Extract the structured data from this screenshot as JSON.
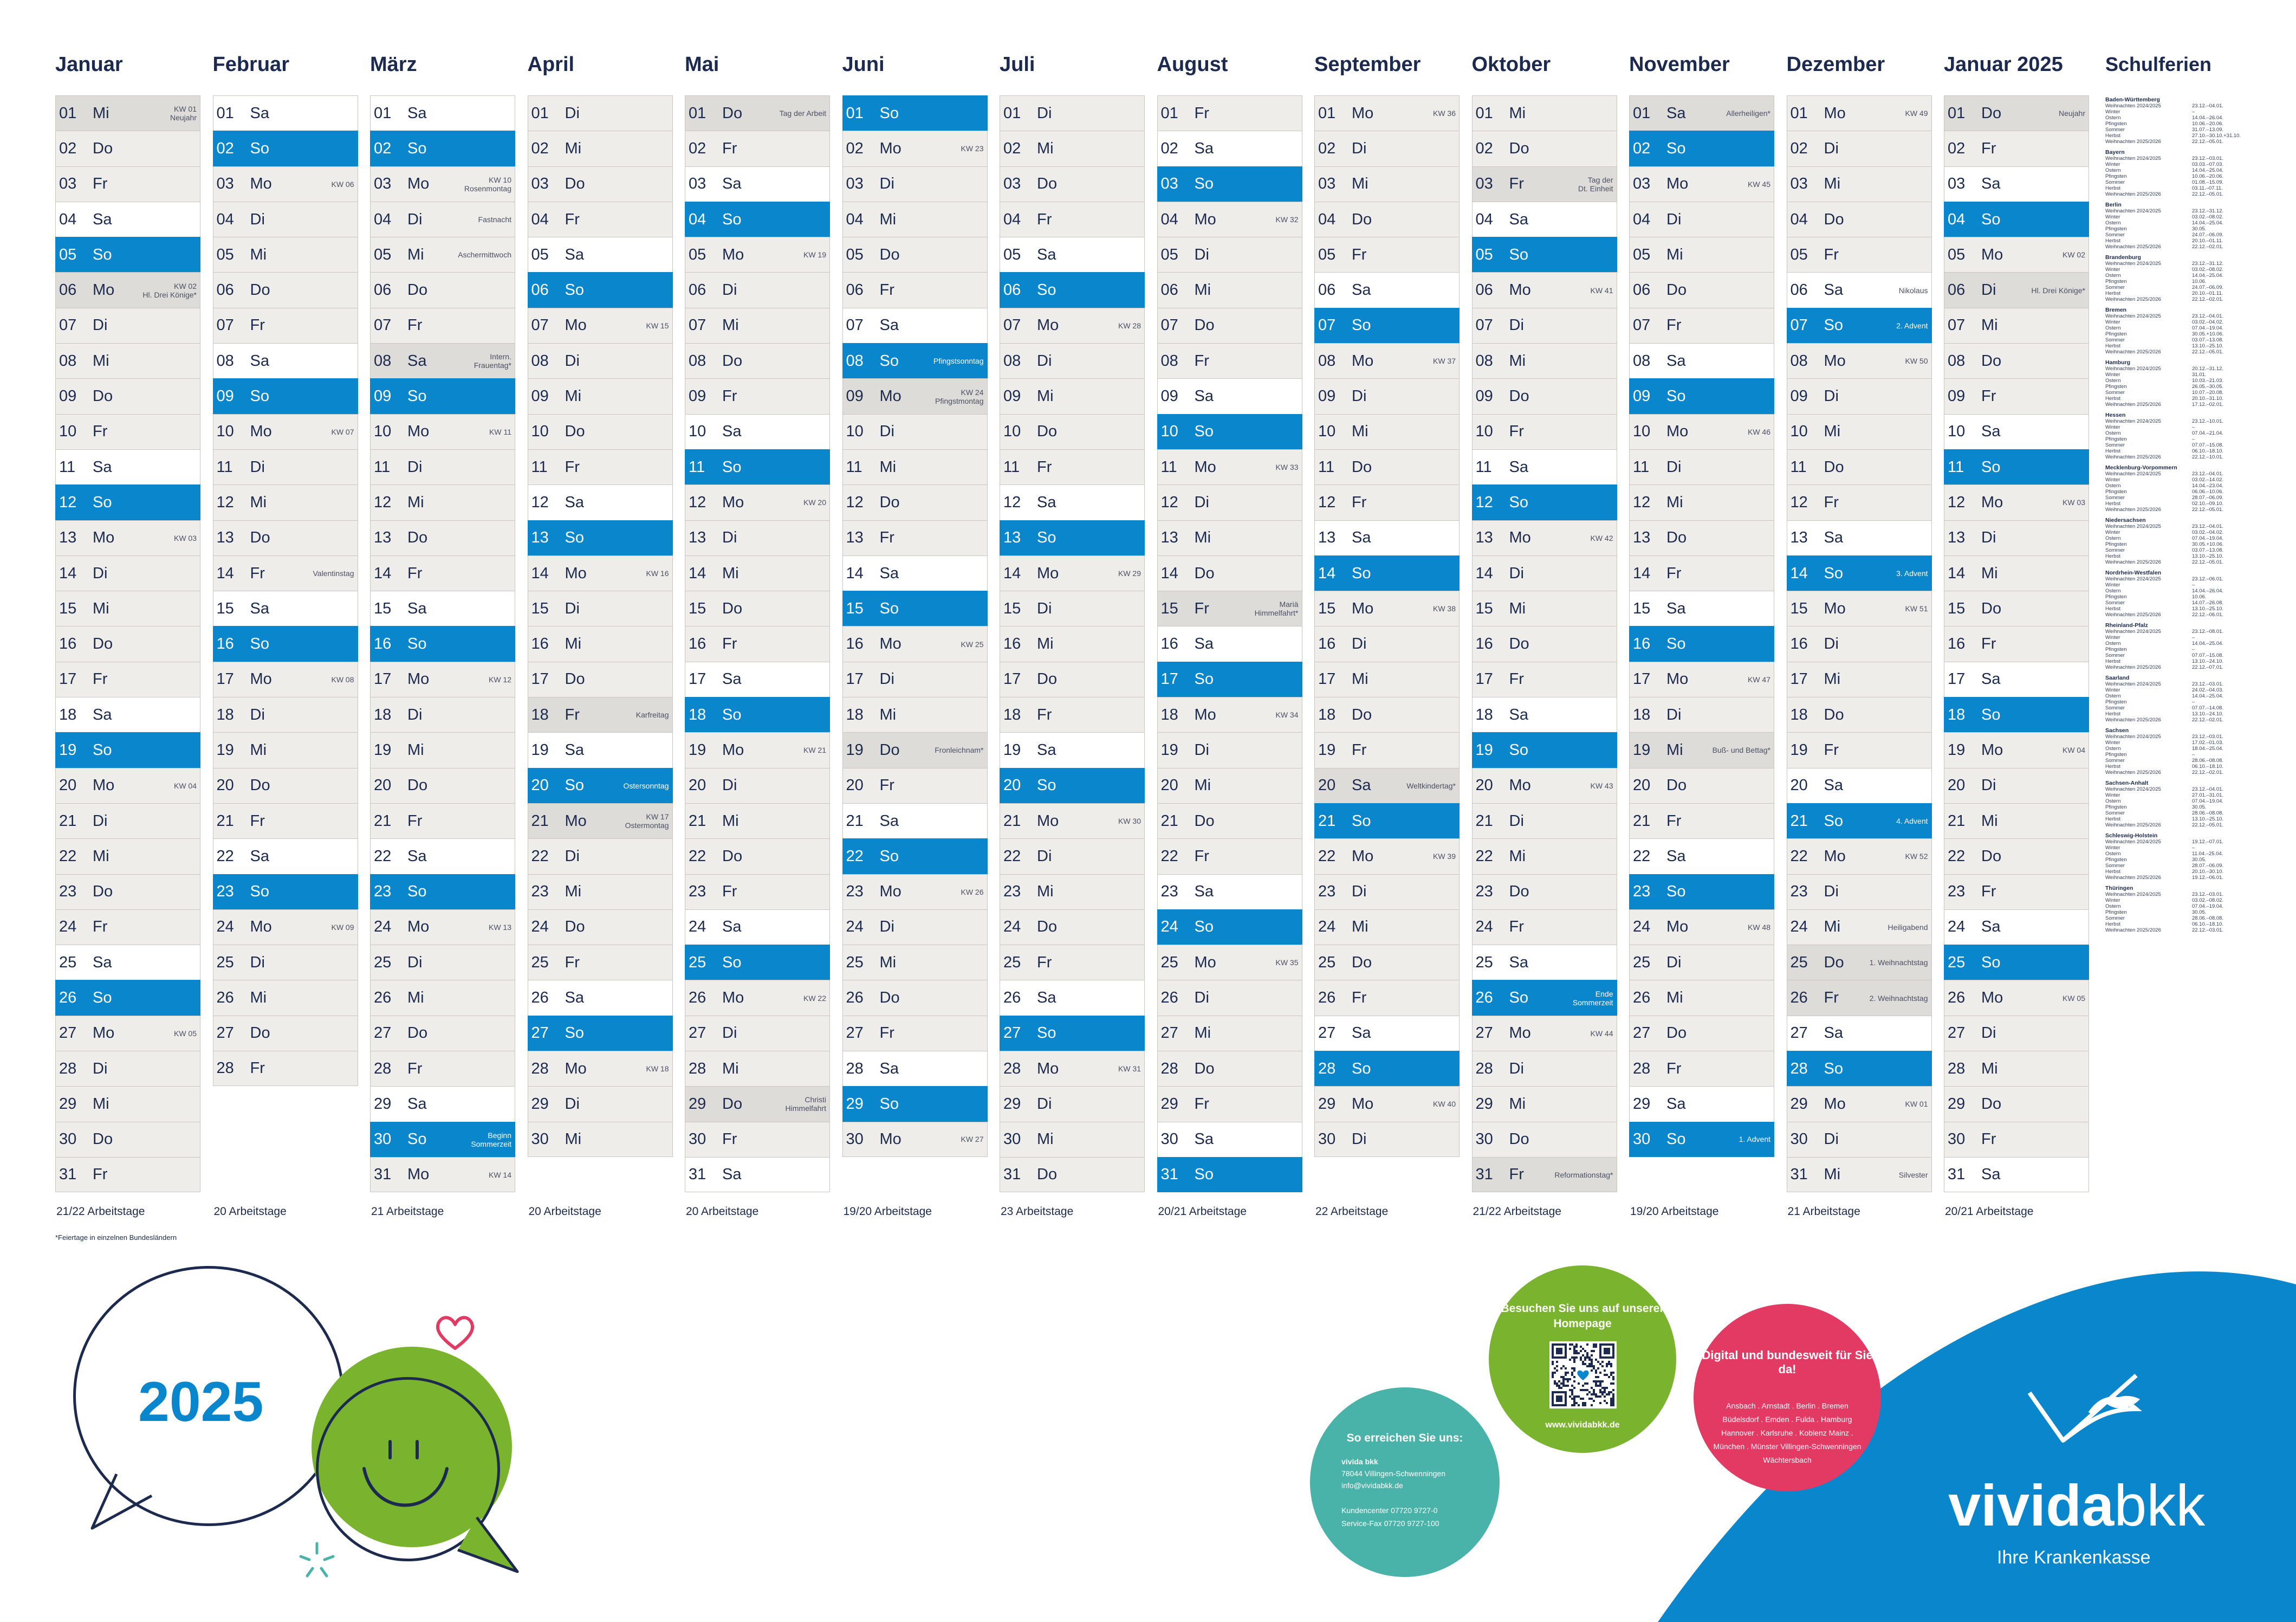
{
  "months": [
    {
      "name": "Januar",
      "workdays": "21/22 Arbeitstage",
      "first_weekday": 2,
      "length": 31,
      "notes": {
        "1": "KW 01\nNeujahr",
        "6": "KW 02\nHl. Drei Könige*",
        "13": "KW 03",
        "20": "KW 04",
        "27": "KW 05"
      },
      "holidays": [
        1,
        6
      ]
    },
    {
      "name": "Februar",
      "workdays": "20 Arbeitstage",
      "first_weekday": 5,
      "length": 28,
      "notes": {
        "3": "KW 06",
        "10": "KW 07",
        "14": "Valentinstag",
        "17": "KW 08",
        "24": "KW 09"
      },
      "holidays": []
    },
    {
      "name": "März",
      "workdays": "21 Arbeitstage",
      "first_weekday": 5,
      "length": 31,
      "notes": {
        "3": "KW 10\nRosenmontag",
        "4": "Fastnacht",
        "5": "Aschermittwoch",
        "8": "Intern.\nFrauentag*",
        "10": "KW 11",
        "17": "KW 12",
        "24": "KW 13",
        "30": "Beginn\nSommerzeit",
        "31": "KW 14"
      },
      "holidays": [
        8
      ]
    },
    {
      "name": "April",
      "workdays": "20 Arbeitstage",
      "first_weekday": 1,
      "length": 30,
      "notes": {
        "7": "KW 15",
        "14": "KW 16",
        "18": "Karfreitag",
        "20": "Ostersonntag",
        "21": "KW 17\nOstermontag",
        "28": "KW 18"
      },
      "holidays": [
        18,
        21
      ]
    },
    {
      "name": "Mai",
      "workdays": "20 Arbeitstage",
      "first_weekday": 3,
      "length": 31,
      "notes": {
        "1": "Tag der Arbeit",
        "5": "KW 19",
        "12": "KW 20",
        "19": "KW 21",
        "26": "KW 22",
        "29": "Christi\nHimmelfahrt"
      },
      "holidays": [
        1,
        29
      ]
    },
    {
      "name": "Juni",
      "workdays": "19/20 Arbeitstage",
      "first_weekday": 6,
      "length": 30,
      "notes": {
        "2": "KW 23",
        "8": "Pfingstsonntag",
        "9": "KW 24\nPfingstmontag",
        "16": "KW 25",
        "19": "Fronleichnam*",
        "23": "KW 26",
        "30": "KW 27"
      },
      "holidays": [
        9,
        19
      ]
    },
    {
      "name": "Juli",
      "workdays": "23 Arbeitstage",
      "first_weekday": 1,
      "length": 31,
      "notes": {
        "7": "KW 28",
        "14": "KW 29",
        "21": "KW 30",
        "28": "KW 31"
      },
      "holidays": []
    },
    {
      "name": "August",
      "workdays": "20/21 Arbeitstage",
      "first_weekday": 4,
      "length": 31,
      "notes": {
        "4": "KW 32",
        "11": "KW 33",
        "15": "Mariä\nHimmelfahrt*",
        "18": "KW 34",
        "25": "KW 35"
      },
      "holidays": [
        15
      ]
    },
    {
      "name": "September",
      "workdays": "22 Arbeitstage",
      "first_weekday": 0,
      "length": 30,
      "notes": {
        "1": "KW 36",
        "8": "KW 37",
        "15": "KW 38",
        "20": "Weltkindertag*",
        "22": "KW 39",
        "29": "KW 40"
      },
      "holidays": [
        20
      ]
    },
    {
      "name": "Oktober",
      "workdays": "21/22 Arbeitstage",
      "first_weekday": 2,
      "length": 31,
      "notes": {
        "3": "Tag der\nDt. Einheit",
        "6": "KW 41",
        "13": "KW 42",
        "20": "KW 43",
        "26": "Ende\nSommerzeit",
        "27": "KW 44",
        "31": "Reformationstag*"
      },
      "holidays": [
        3,
        31
      ]
    },
    {
      "name": "November",
      "workdays": "19/20 Arbeitstage",
      "first_weekday": 5,
      "length": 30,
      "notes": {
        "1": "Allerheiligen*",
        "3": "KW 45",
        "10": "KW 46",
        "17": "KW 47",
        "19": "Buß- und Bettag*",
        "24": "KW 48",
        "30": "1. Advent"
      },
      "holidays": [
        1,
        19
      ]
    },
    {
      "name": "Dezember",
      "workdays": "21 Arbeitstage",
      "first_weekday": 0,
      "length": 31,
      "notes": {
        "1": "KW 49",
        "6": "Nikolaus",
        "7": "2. Advent",
        "8": "KW 50",
        "14": "3. Advent",
        "15": "KW 51",
        "21": "4. Advent",
        "22": "KW 52",
        "24": "Heiligabend",
        "25": "1. Weihnachtstag",
        "26": "2. Weihnachtstag",
        "29": "KW 01",
        "31": "Silvester"
      },
      "holidays": [
        25,
        26
      ]
    },
    {
      "name": "Januar 2025",
      "workdays": "20/21 Arbeitstage",
      "first_weekday": 3,
      "length": 31,
      "notes": {
        "1": "Neujahr",
        "5": "KW 02",
        "6": "Hl. Drei Könige*",
        "12": "KW 03",
        "19": "KW 04",
        "26": "KW 05"
      },
      "holidays": [
        1,
        6
      ]
    }
  ],
  "weekday_abbr": [
    "Mo",
    "Di",
    "Mi",
    "Do",
    "Fr",
    "Sa",
    "So"
  ],
  "footnote": "*Feiertage in einzelnen Bundesländern",
  "schulferien": {
    "title": "Schulferien",
    "states": [
      {
        "name": "Baden-Württemberg",
        "rows": [
          [
            "Weihnachten 2024/2025",
            "23.12.–04.01."
          ],
          [
            "Winter",
            "–"
          ],
          [
            "Ostern",
            "14.04.–26.04."
          ],
          [
            "Pfingsten",
            "10.06.–20.06."
          ],
          [
            "Sommer",
            "31.07.–13.09."
          ],
          [
            "Herbst",
            "27.10.–30.10.+31.10."
          ],
          [
            "Weihnachten 2025/2026",
            "22.12.–05.01."
          ]
        ]
      },
      {
        "name": "Bayern",
        "rows": [
          [
            "Weihnachten 2024/2025",
            "23.12.–03.01."
          ],
          [
            "Winter",
            "03.03.–07.03."
          ],
          [
            "Ostern",
            "14.04.–25.04."
          ],
          [
            "Pfingsten",
            "10.06.–20.06."
          ],
          [
            "Sommer",
            "01.08.–15.09."
          ],
          [
            "Herbst",
            "03.11.–07.11."
          ],
          [
            "Weihnachten 2025/2026",
            "22.12.–05.01."
          ]
        ]
      },
      {
        "name": "Berlin",
        "rows": [
          [
            "Weihnachten 2024/2025",
            "23.12.–31.12."
          ],
          [
            "Winter",
            "03.02.–08.02."
          ],
          [
            "Ostern",
            "14.04.–25.04."
          ],
          [
            "Pfingsten",
            "30.05."
          ],
          [
            "Sommer",
            "24.07.–06.09."
          ],
          [
            "Herbst",
            "20.10.–01.11."
          ],
          [
            "Weihnachten 2025/2026",
            "22.12.–02.01."
          ]
        ]
      },
      {
        "name": "Brandenburg",
        "rows": [
          [
            "Weihnachten 2024/2025",
            "23.12.–31.12."
          ],
          [
            "Winter",
            "03.02.–08.02."
          ],
          [
            "Ostern",
            "14.04.–25.04."
          ],
          [
            "Pfingsten",
            "10.06."
          ],
          [
            "Sommer",
            "24.07.–06.09."
          ],
          [
            "Herbst",
            "20.10.–01.11."
          ],
          [
            "Weihnachten 2025/2026",
            "22.12.–02.01."
          ]
        ]
      },
      {
        "name": "Bremen",
        "rows": [
          [
            "Weihnachten 2024/2025",
            "23.12.–04.01."
          ],
          [
            "Winter",
            "03.02.–04.02."
          ],
          [
            "Ostern",
            "07.04.–19.04."
          ],
          [
            "Pfingsten",
            "30.05.+10.06."
          ],
          [
            "Sommer",
            "03.07.–13.08."
          ],
          [
            "Herbst",
            "13.10.–25.10."
          ],
          [
            "Weihnachten 2025/2026",
            "22.12.–05.01."
          ]
        ]
      },
      {
        "name": "Hamburg",
        "rows": [
          [
            "Weihnachten 2024/2025",
            "20.12.–31.12."
          ],
          [
            "Winter",
            "31.01."
          ],
          [
            "Ostern",
            "10.03.–21.03."
          ],
          [
            "Pfingsten",
            "26.05.–30.05."
          ],
          [
            "Sommer",
            "10.07.–20.08."
          ],
          [
            "Herbst",
            "20.10.–31.10."
          ],
          [
            "Weihnachten 2025/2026",
            "17.12.–02.01."
          ]
        ]
      },
      {
        "name": "Hessen",
        "rows": [
          [
            "Weihnachten 2024/2025",
            "23.12.–10.01."
          ],
          [
            "Winter",
            "–"
          ],
          [
            "Ostern",
            "07.04.–21.04."
          ],
          [
            "Pfingsten",
            "–"
          ],
          [
            "Sommer",
            "07.07.–15.08."
          ],
          [
            "Herbst",
            "06.10.–18.10."
          ],
          [
            "Weihnachten 2025/2026",
            "22.12.–10.01."
          ]
        ]
      },
      {
        "name": "Mecklenburg-Vorpommern",
        "rows": [
          [
            "Weihnachten 2024/2025",
            "23.12.–04.01."
          ],
          [
            "Winter",
            "03.02.–14.02."
          ],
          [
            "Ostern",
            "14.04.–23.04."
          ],
          [
            "Pfingsten",
            "06.06.–10.06."
          ],
          [
            "Sommer",
            "28.07.–06.09."
          ],
          [
            "Herbst",
            "02.10.–09.10."
          ],
          [
            "Weihnachten 2025/2026",
            "22.12.–05.01."
          ]
        ]
      },
      {
        "name": "Niedersachsen",
        "rows": [
          [
            "Weihnachten 2024/2025",
            "23.12.–04.01."
          ],
          [
            "Winter",
            "03.02.–04.02."
          ],
          [
            "Ostern",
            "07.04.–19.04."
          ],
          [
            "Pfingsten",
            "30.05.+10.06."
          ],
          [
            "Sommer",
            "03.07.–13.08."
          ],
          [
            "Herbst",
            "13.10.–25.10."
          ],
          [
            "Weihnachten 2025/2026",
            "22.12.–05.01."
          ]
        ]
      },
      {
        "name": "Nordrhein-Westfalen",
        "rows": [
          [
            "Weihnachten 2024/2025",
            "23.12.–06.01."
          ],
          [
            "Winter",
            "–"
          ],
          [
            "Ostern",
            "14.04.–26.04."
          ],
          [
            "Pfingsten",
            "10.06."
          ],
          [
            "Sommer",
            "14.07.–26.08."
          ],
          [
            "Herbst",
            "13.10.–25.10."
          ],
          [
            "Weihnachten 2025/2026",
            "22.12.–06.01."
          ]
        ]
      },
      {
        "name": "Rheinland-Pfalz",
        "rows": [
          [
            "Weihnachten 2024/2025",
            "23.12.–08.01."
          ],
          [
            "Winter",
            "–"
          ],
          [
            "Ostern",
            "14.04.–25.04."
          ],
          [
            "Pfingsten",
            "–"
          ],
          [
            "Sommer",
            "07.07.–15.08."
          ],
          [
            "Herbst",
            "13.10.–24.10."
          ],
          [
            "Weihnachten 2025/2026",
            "22.12.–07.01."
          ]
        ]
      },
      {
        "name": "Saarland",
        "rows": [
          [
            "Weihnachten 2024/2025",
            "23.12.–03.01."
          ],
          [
            "Winter",
            "24.02.–04.03."
          ],
          [
            "Ostern",
            "14.04.–25.04."
          ],
          [
            "Pfingsten",
            "–"
          ],
          [
            "Sommer",
            "07.07.–14.08."
          ],
          [
            "Herbst",
            "13.10.–24.10."
          ],
          [
            "Weihnachten 2025/2026",
            "22.12.–02.01."
          ]
        ]
      },
      {
        "name": "Sachsen",
        "rows": [
          [
            "Weihnachten 2024/2025",
            "23.12.–03.01."
          ],
          [
            "Winter",
            "17.02.–01.03."
          ],
          [
            "Ostern",
            "18.04.–25.04."
          ],
          [
            "Pfingsten",
            "–"
          ],
          [
            "Sommer",
            "28.06.–08.08."
          ],
          [
            "Herbst",
            "06.10.–18.10."
          ],
          [
            "Weihnachten 2025/2026",
            "22.12.–02.01."
          ]
        ]
      },
      {
        "name": "Sachsen-Anhalt",
        "rows": [
          [
            "Weihnachten 2024/2025",
            "23.12.–04.01."
          ],
          [
            "Winter",
            "27.01.–31.01."
          ],
          [
            "Ostern",
            "07.04.–19.04."
          ],
          [
            "Pfingsten",
            "30.05."
          ],
          [
            "Sommer",
            "28.06.–08.08."
          ],
          [
            "Herbst",
            "13.10.–25.10."
          ],
          [
            "Weihnachten 2025/2026",
            "22.12.–05.01."
          ]
        ]
      },
      {
        "name": "Schleswig-Holstein",
        "rows": [
          [
            "Weihnachten 2024/2025",
            "19.12.–07.01."
          ],
          [
            "Winter",
            "–"
          ],
          [
            "Ostern",
            "11.04.–25.04."
          ],
          [
            "Pfingsten",
            "30.05."
          ],
          [
            "Sommer",
            "28.07.–06.09."
          ],
          [
            "Herbst",
            "20.10.–30.10."
          ],
          [
            "Weihnachten 2025/2026",
            "19.12.–06.01."
          ]
        ]
      },
      {
        "name": "Thüringen",
        "rows": [
          [
            "Weihnachten 2024/2025",
            "23.12.–03.01."
          ],
          [
            "Winter",
            "03.02.–08.02."
          ],
          [
            "Ostern",
            "07.04.–19.04."
          ],
          [
            "Pfingsten",
            "30.05."
          ],
          [
            "Sommer",
            "28.06.–08.08."
          ],
          [
            "Herbst",
            "06.10.–18.10."
          ],
          [
            "Weihnachten 2025/2026",
            "22.12.–03.01."
          ]
        ]
      }
    ]
  },
  "year_label": "2025",
  "contact": {
    "title": "So erreichen Sie uns:",
    "company": "vivida bkk",
    "city": "78044 Villingen-Schwenningen",
    "email": "info@vividabkk.de",
    "phone_line": "Kundencenter  07720 9727-0",
    "fax_line": "Service-Fax   07720 9727-100"
  },
  "homepage": {
    "title": "Besuchen Sie uns auf unserer Homepage",
    "url": "www.vividabkk.de"
  },
  "locations": {
    "title": "Digital und bundesweit für Sie da!",
    "cities": "Ansbach . Arnstadt . Berlin . Bremen Büdelsdorf . Emden . Fulda . Hamburg Hannover . Karlsruhe . Koblenz Mainz . München . Münster Villingen-Schwenningen Wächtersbach"
  },
  "brand": {
    "name_a": "vivida",
    "name_b": "bkk",
    "tagline": "Ihre Krankenkasse"
  },
  "colors": {
    "sunday": "#0a86cc",
    "navy": "#1b2a4e",
    "weekday": "#efedea",
    "green": "#7ab42f",
    "teal": "#4ab3a9",
    "pink": "#e23a63"
  }
}
